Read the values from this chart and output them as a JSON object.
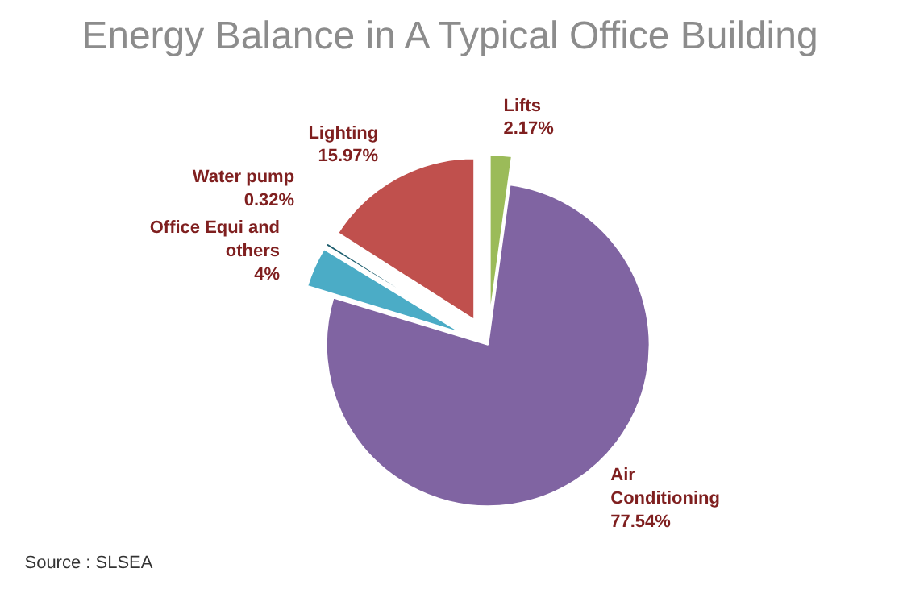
{
  "chart_data": {
    "type": "pie",
    "title": "Energy Balance in A Typical Office Building",
    "categories": [
      "Lifts",
      "Air Conditioning",
      "Office Equi and others",
      "Water pump",
      "Lighting"
    ],
    "values": [
      2.17,
      77.54,
      4,
      0.32,
      15.97
    ],
    "colors": [
      "#9bbb59",
      "#8064a2",
      "#4bacc6",
      "#1f5f6f",
      "#c0504d"
    ],
    "value_labels": [
      "2.17%",
      "77.54%",
      "4%",
      "0.32%",
      "15.97%"
    ],
    "annotations": [
      "Source : SLSEA"
    ],
    "legend": false
  }
}
